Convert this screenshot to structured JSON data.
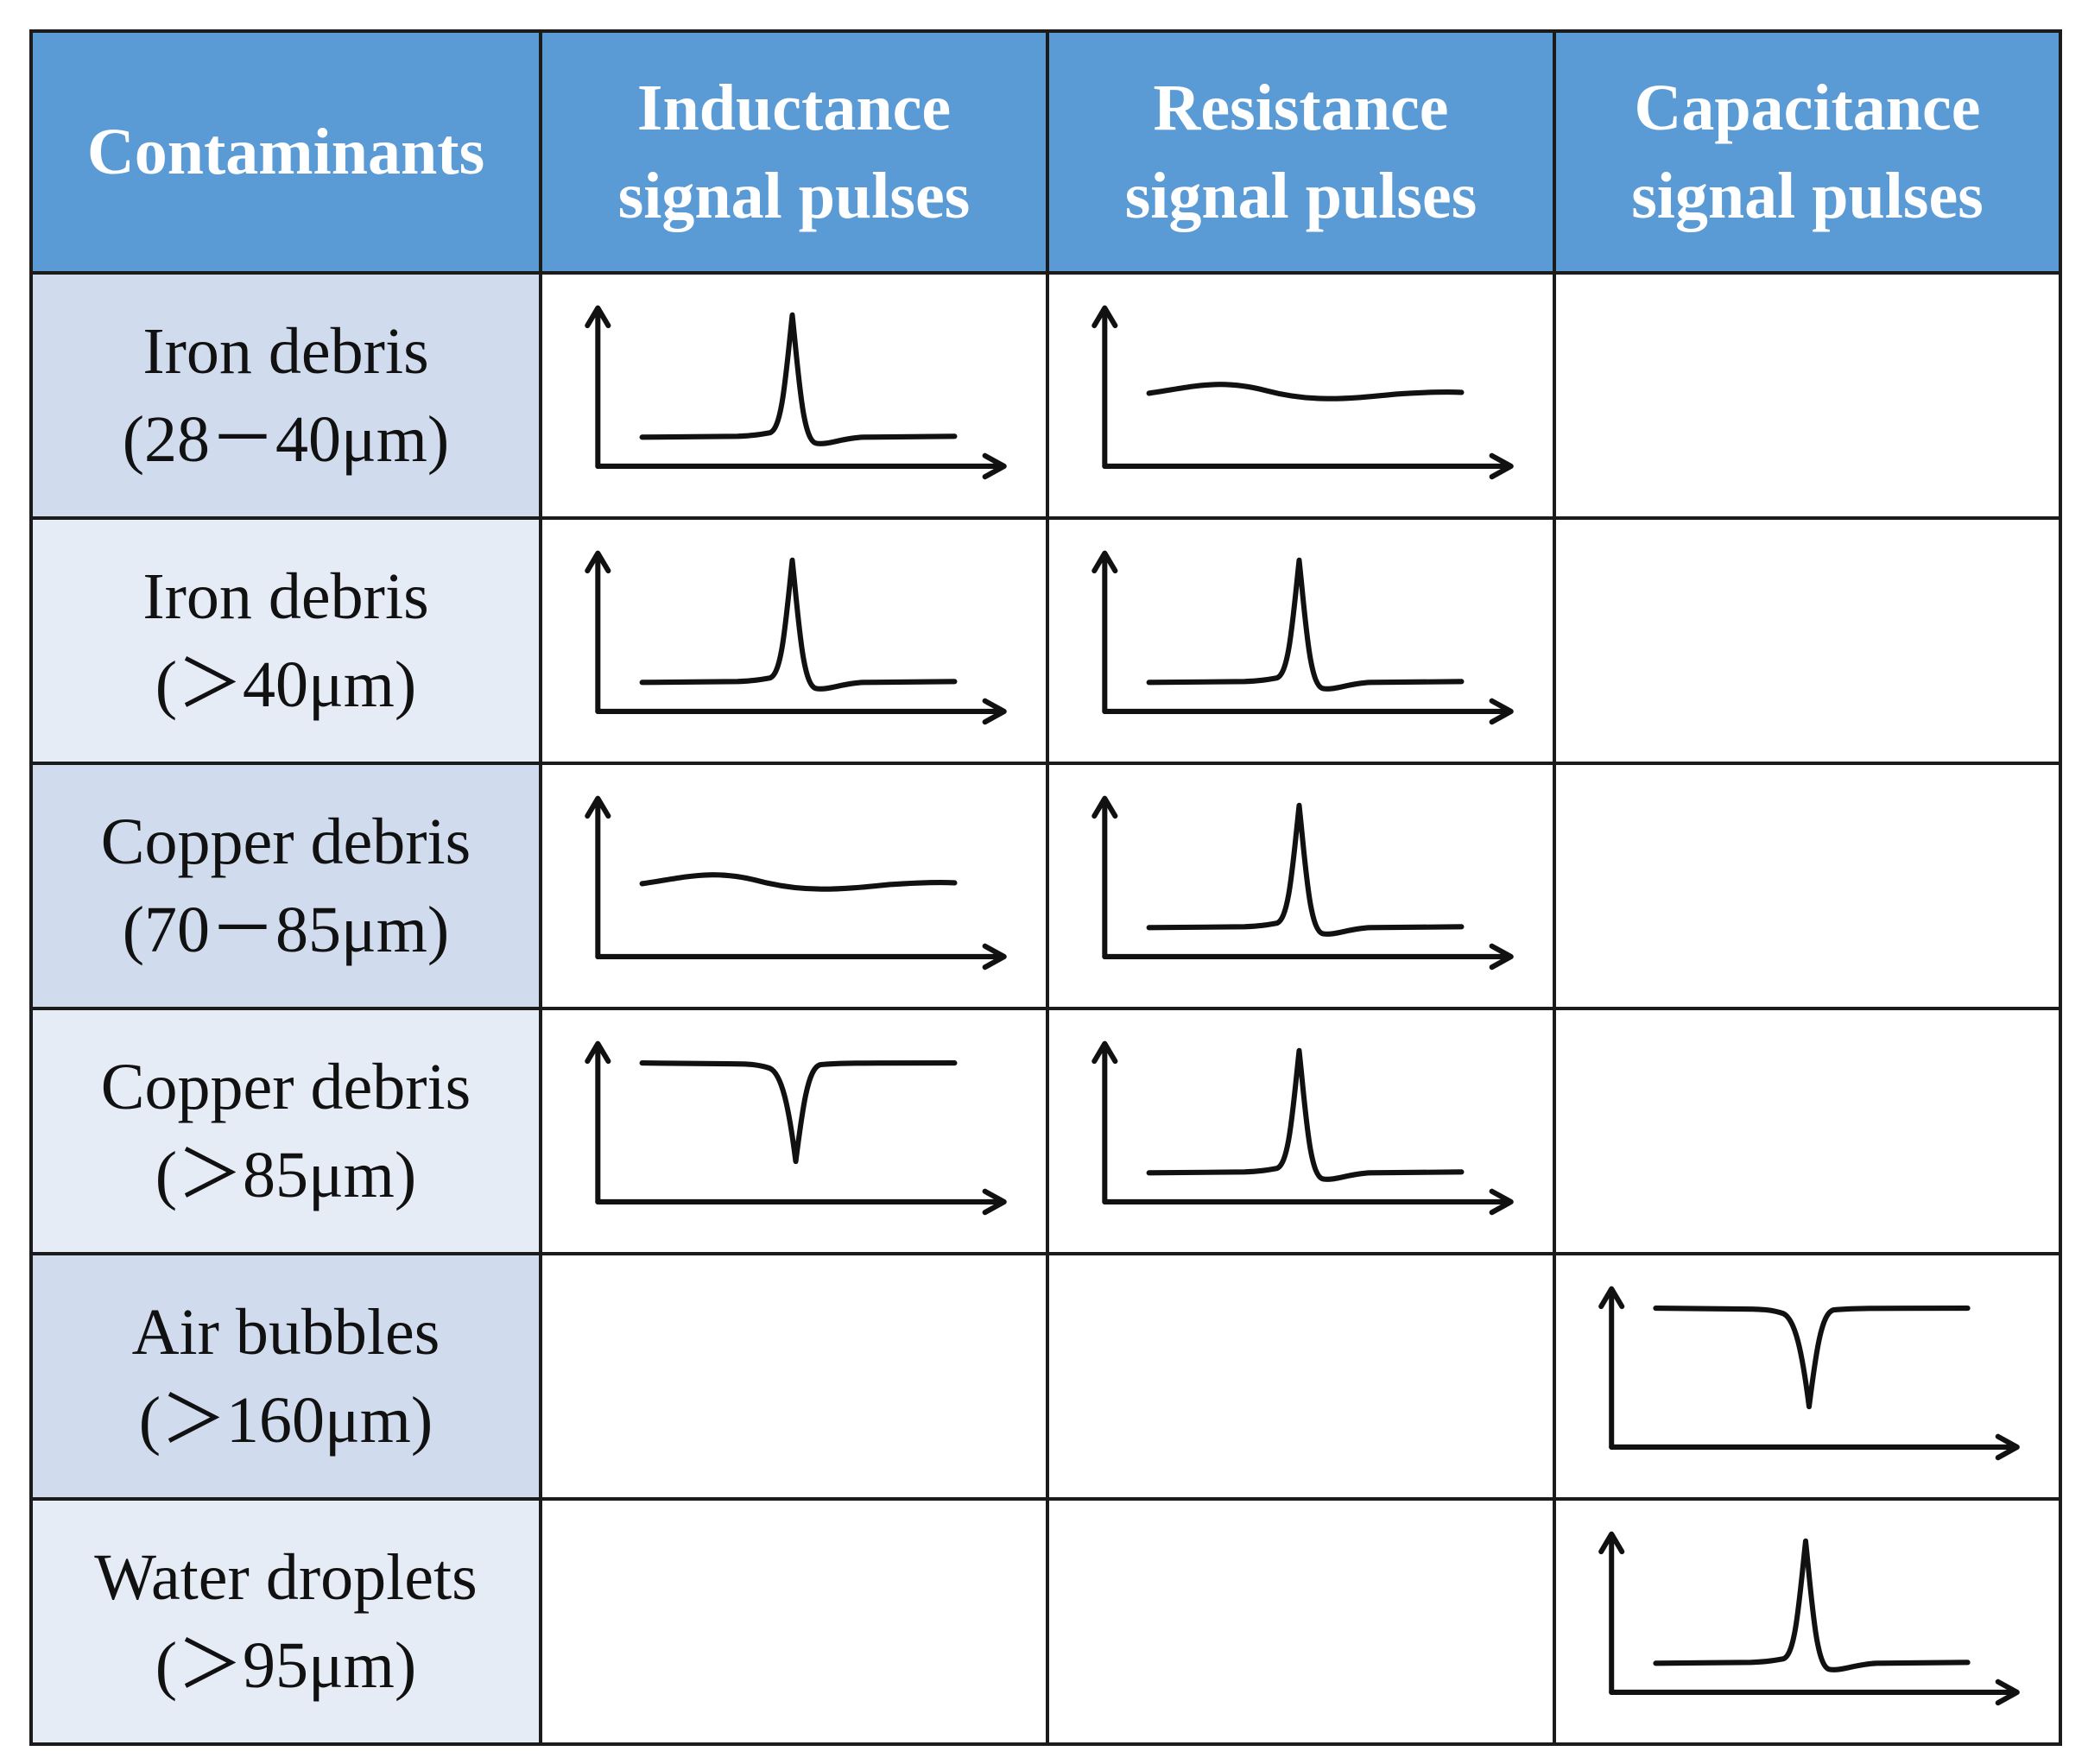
{
  "table": {
    "headers": [
      "Contaminants",
      "Inductance\nsignal pulses",
      "Resistance\nsignal pulses",
      "Capacitance\nsignal pulses"
    ],
    "rows": [
      {
        "label": "Iron debris\n(28－40μm)",
        "signals": [
          "peak-up",
          "flat-wave",
          "none"
        ]
      },
      {
        "label": "Iron debris\n(＞40μm)",
        "signals": [
          "peak-up",
          "peak-up",
          "none"
        ]
      },
      {
        "label": "Copper debris\n(70－85μm)",
        "signals": [
          "flat-wave",
          "peak-up",
          "none"
        ]
      },
      {
        "label": "Copper debris\n(＞85μm)",
        "signals": [
          "peak-down",
          "peak-up",
          "none"
        ]
      },
      {
        "label": "Air bubbles\n(＞160μm)",
        "signals": [
          "none",
          "none",
          "peak-down"
        ]
      },
      {
        "label": "Water droplets\n(＞95μm)",
        "signals": [
          "none",
          "none",
          "peak-up"
        ]
      }
    ]
  },
  "colors": {
    "header_bg": "#5b9bd5",
    "header_text": "#ffffff",
    "label_bg_odd": "#d0dcee",
    "label_bg_even": "#e6ecf6",
    "line": "#111111"
  }
}
